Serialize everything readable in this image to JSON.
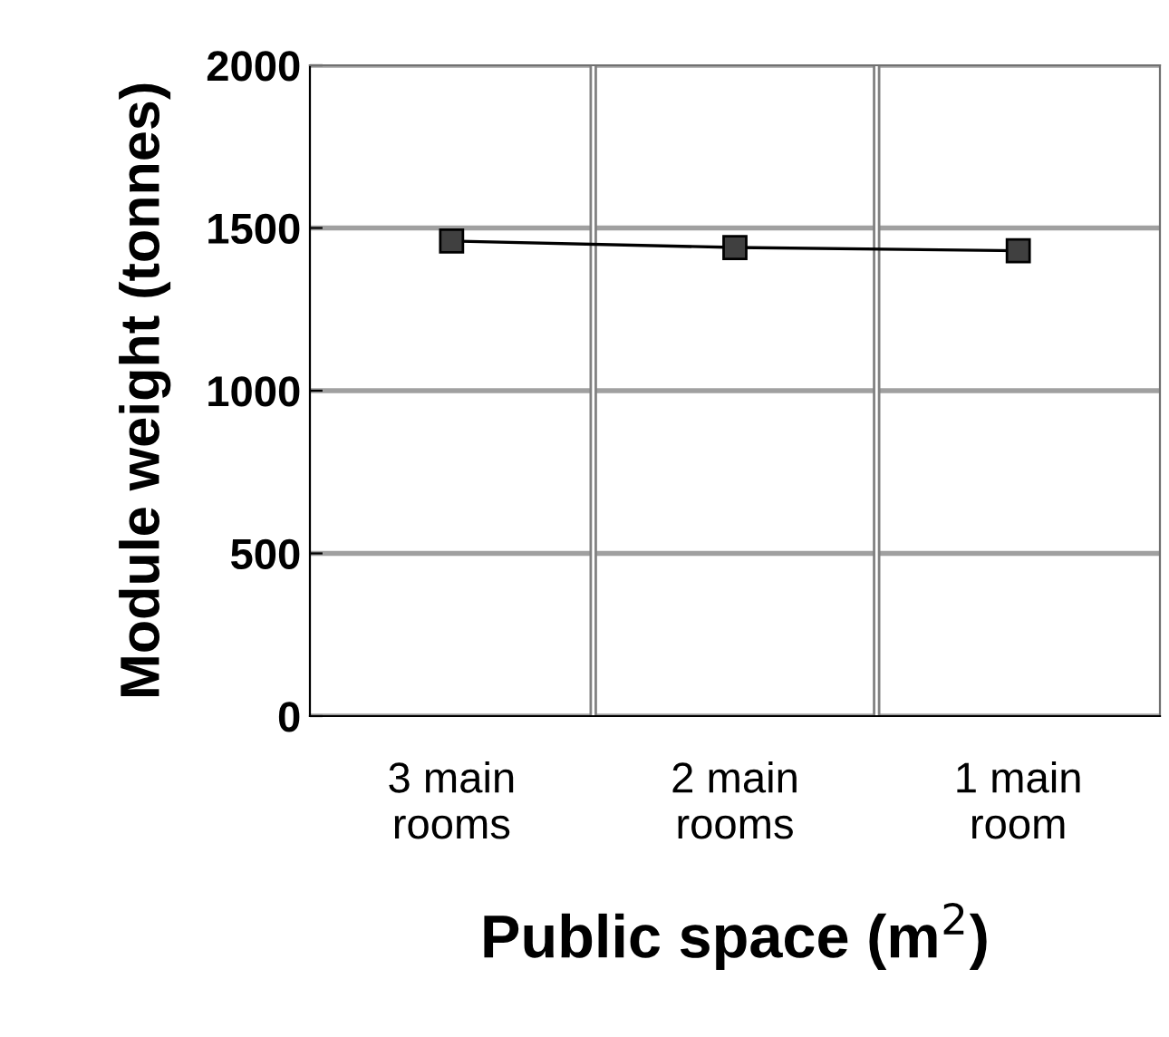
{
  "chart_data": {
    "type": "line",
    "xlabel": "Public space (m$^{2}$)",
    "ylabel": "Module weight (tonnes)",
    "categories": [
      "3 main\nrooms",
      "2 main\nrooms",
      "1 main\nroom"
    ],
    "series": [
      {
        "color": "#404040",
        "values": [
          1460,
          1440,
          1430
        ]
      }
    ],
    "ylim": [
      0,
      2000
    ],
    "yticks": [
      0,
      500,
      1000,
      1500,
      2000
    ],
    "grid": true,
    "marker": "square",
    "line_style": "solid",
    "legend": false
  }
}
